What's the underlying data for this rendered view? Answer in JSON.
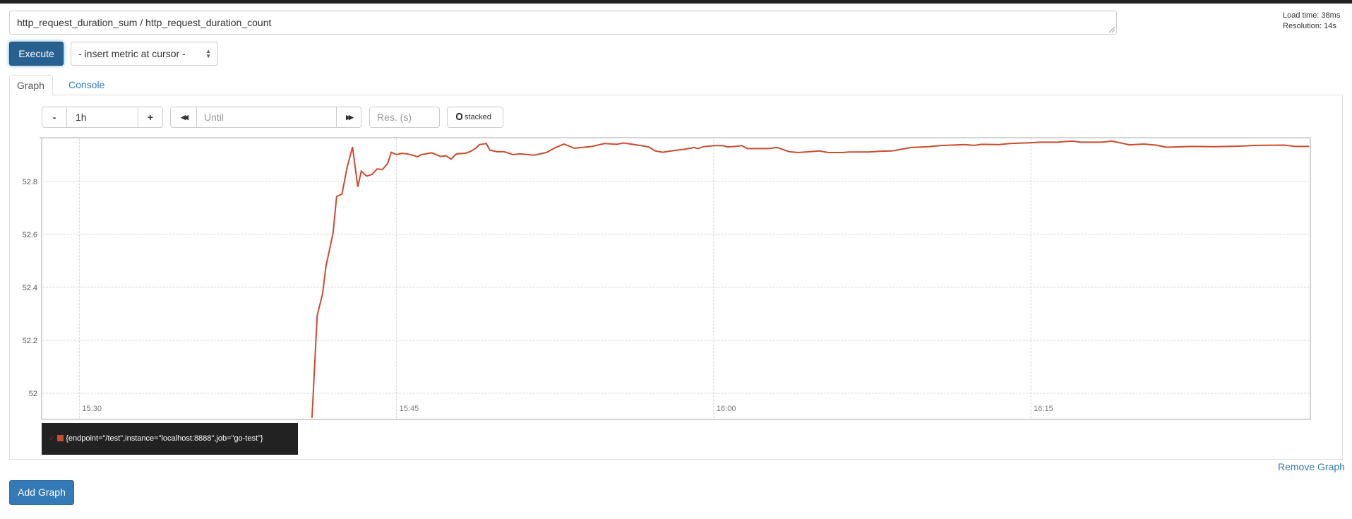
{
  "query": {
    "expression": "http_request_duration_sum / http_request_duration_count"
  },
  "stats": {
    "load_time": "Load time: 38ms",
    "resolution": "Resolution: 14s"
  },
  "toolbar": {
    "execute_label": "Execute",
    "metric_select": "- insert metric at cursor -"
  },
  "tabs": [
    {
      "label": "Graph",
      "active": true
    },
    {
      "label": "Console",
      "active": false
    }
  ],
  "controls": {
    "minus": "-",
    "range": "1h",
    "plus": "+",
    "back": "◀◀",
    "until_placeholder": "Until",
    "forward": "▶▶",
    "res_placeholder": "Res. (s)",
    "stacked_label": "stacked"
  },
  "legend": {
    "check": "✓",
    "series": "{endpoint=\"/test\",instance=\"localhost:8888\",job=\"go-test\"}",
    "color": "#cb4b2f"
  },
  "remove_graph": "Remove Graph",
  "add_graph": "Add Graph",
  "chart_data": {
    "type": "line",
    "title": "",
    "xlabel": "",
    "ylabel": "",
    "xlim": [
      "15:28:13",
      "16:28:13"
    ],
    "ylim": [
      51.901,
      52.965
    ],
    "grid": true,
    "x_ticks": [
      "15:30",
      "15:45",
      "16:00",
      "16:15"
    ],
    "y_ticks": [
      "52",
      "52.2",
      "52.4",
      "52.6",
      "52.8"
    ],
    "y_tick_values": [
      52,
      52.2,
      52.4,
      52.6,
      52.8
    ],
    "series": [
      {
        "name": "{endpoint=\"/test\",instance=\"localhost:8888\",job=\"go-test\"}",
        "color": "#cb4b2f",
        "x": [
          "15:41:00",
          "15:41:15",
          "15:41:30",
          "15:41:40",
          "15:42:00",
          "15:42:10",
          "15:42:25",
          "15:42:40",
          "15:42:55",
          "15:43:10",
          "15:43:20",
          "15:43:35",
          "15:43:50",
          "15:44:05",
          "15:44:20",
          "15:44:35",
          "15:44:45",
          "15:45:00",
          "15:45:15",
          "15:45:30",
          "15:45:45",
          "15:46:00",
          "15:46:10",
          "15:46:40",
          "15:47:05",
          "15:47:20",
          "15:47:35",
          "15:47:50",
          "15:48:15",
          "15:48:30",
          "15:48:45",
          "15:48:55",
          "15:49:15",
          "15:49:25",
          "15:49:45",
          "15:50:05",
          "15:50:15",
          "15:50:30",
          "15:50:50",
          "15:51:30",
          "15:52:05",
          "15:52:30",
          "15:52:55",
          "15:53:25",
          "15:54:15",
          "15:54:50",
          "15:55:25",
          "15:55:45",
          "15:56:30",
          "15:56:55",
          "15:57:15",
          "15:57:35",
          "15:58:05",
          "15:58:35",
          "15:59:05",
          "15:59:15",
          "15:59:30",
          "16:00:00",
          "16:00:25",
          "16:00:40",
          "16:01:00",
          "16:01:20",
          "16:01:35",
          "16:02:35",
          "16:03:00",
          "16:03:35",
          "16:04:00",
          "16:05:00",
          "16:05:25",
          "16:06:05",
          "16:06:25",
          "16:07:20",
          "16:07:55",
          "16:08:25",
          "16:09:20",
          "16:10:10",
          "16:10:40",
          "16:11:50",
          "16:12:20",
          "16:12:40",
          "16:13:30",
          "16:14:00",
          "16:15:00",
          "16:15:25",
          "16:16:15",
          "16:16:40",
          "16:17:00",
          "16:17:20",
          "16:18:20",
          "16:18:50",
          "16:19:40",
          "16:20:20",
          "16:20:55",
          "16:21:25",
          "16:22:35",
          "16:23:40",
          "16:24:50",
          "16:25:40",
          "16:27:00",
          "16:27:30",
          "16:28:10"
        ],
        "y": [
          51.907,
          52.294,
          52.374,
          52.481,
          52.605,
          52.743,
          52.752,
          52.854,
          52.93,
          52.779,
          52.839,
          52.82,
          52.826,
          52.847,
          52.845,
          52.868,
          52.91,
          52.901,
          52.906,
          52.904,
          52.899,
          52.893,
          52.901,
          52.908,
          52.894,
          52.897,
          52.884,
          52.904,
          52.906,
          52.913,
          52.925,
          52.939,
          52.943,
          52.918,
          52.912,
          52.912,
          52.908,
          52.901,
          52.904,
          52.899,
          52.909,
          52.927,
          52.941,
          52.925,
          52.932,
          52.943,
          52.94,
          52.945,
          52.936,
          52.93,
          52.915,
          52.91,
          52.916,
          52.921,
          52.928,
          52.924,
          52.931,
          52.935,
          52.935,
          52.93,
          52.932,
          52.935,
          52.924,
          52.924,
          52.928,
          52.912,
          52.909,
          52.915,
          52.909,
          52.909,
          52.911,
          52.911,
          52.914,
          52.915,
          52.928,
          52.931,
          52.935,
          52.939,
          52.936,
          52.94,
          52.939,
          52.943,
          52.946,
          52.948,
          52.948,
          52.951,
          52.952,
          52.948,
          52.948,
          52.952,
          52.938,
          52.941,
          52.937,
          52.929,
          52.932,
          52.931,
          52.933,
          52.936,
          52.937,
          52.932,
          52.932
        ]
      }
    ]
  }
}
